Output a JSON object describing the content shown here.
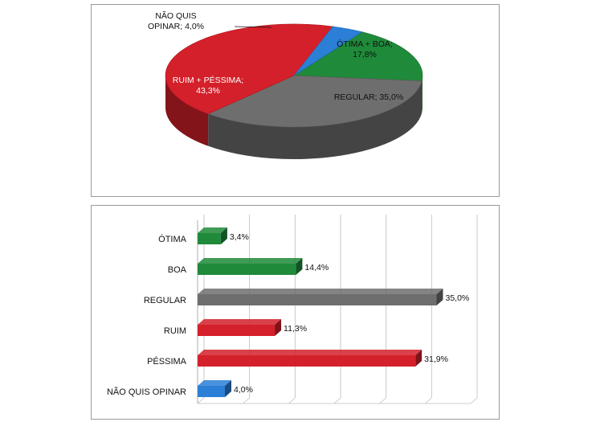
{
  "chart_data": [
    {
      "type": "pie",
      "slices": [
        {
          "label": "ÓTIMA + BOA; 17,8%",
          "value": 17.8,
          "color": "#1f8a3a"
        },
        {
          "label": "REGULAR; 35,0%",
          "value": 35.0,
          "color": "#6e6e6e"
        },
        {
          "label": "RUIM + PÉSSIMA; 43,3%",
          "value": 43.3,
          "color": "#d4202a"
        },
        {
          "label": "NÃO QUIS OPINAR; 4,0%",
          "value": 4.0,
          "color": "#2b7fd6"
        }
      ],
      "label_lines": {
        "s0": [
          "ÓTIMA + BOA;",
          "17,8%"
        ],
        "s1": [
          "REGULAR; 35,0%"
        ],
        "s2": [
          "RUIM + PÉSSIMA;",
          "43,3%"
        ],
        "s3": [
          "NÃO QUIS",
          "OPINAR; 4,0%"
        ]
      }
    },
    {
      "type": "bar",
      "orientation": "horizontal",
      "categories": [
        "ÓTIMA",
        "BOA",
        "REGULAR",
        "RUIM",
        "PÉSSIMA",
        "NÃO QUIS OPINAR"
      ],
      "values": [
        3.4,
        14.4,
        35.0,
        11.3,
        31.9,
        4.0
      ],
      "value_labels": [
        "3,4%",
        "14,4%",
        "35,0%",
        "11,3%",
        "31,9%",
        "4,0%"
      ],
      "colors": [
        "#1f8a3a",
        "#1f8a3a",
        "#6e6e6e",
        "#d4202a",
        "#d4202a",
        "#2b7fd6"
      ],
      "xlim": [
        0,
        40
      ],
      "grid": true
    }
  ]
}
